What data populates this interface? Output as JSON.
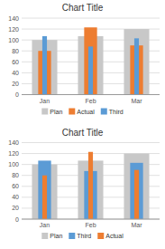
{
  "chart_data": [
    {
      "type": "bar",
      "title": "Chart Title",
      "categories": [
        "Jan",
        "Feb",
        "Mar"
      ],
      "series": [
        {
          "name": "Plan",
          "color": "#c8c8c8",
          "values": [
            100,
            107,
            120
          ]
        },
        {
          "name": "Actual",
          "color": "#ed7d31",
          "values": [
            80,
            123,
            90
          ]
        },
        {
          "name": "Third",
          "color": "#5b9bd5",
          "values": [
            107,
            88,
            103
          ]
        }
      ],
      "ylim": [
        0,
        140
      ],
      "yticks": [
        0,
        20,
        40,
        60,
        80,
        100,
        120,
        140
      ],
      "grid": true,
      "legend": "bottom"
    },
    {
      "type": "bar",
      "title": "Chart Title",
      "categories": [
        "Jan",
        "Feb",
        "Mar"
      ],
      "series": [
        {
          "name": "Plan",
          "color": "#c8c8c8",
          "values": [
            100,
            107,
            120
          ]
        },
        {
          "name": "Third",
          "color": "#5b9bd5",
          "values": [
            107,
            88,
            103
          ]
        },
        {
          "name": "Actual",
          "color": "#ed7d31",
          "values": [
            80,
            123,
            90
          ]
        }
      ],
      "ylim": [
        0,
        140
      ],
      "yticks": [
        0,
        20,
        40,
        60,
        80,
        100,
        120,
        140
      ],
      "grid": true,
      "legend": "bottom"
    }
  ]
}
